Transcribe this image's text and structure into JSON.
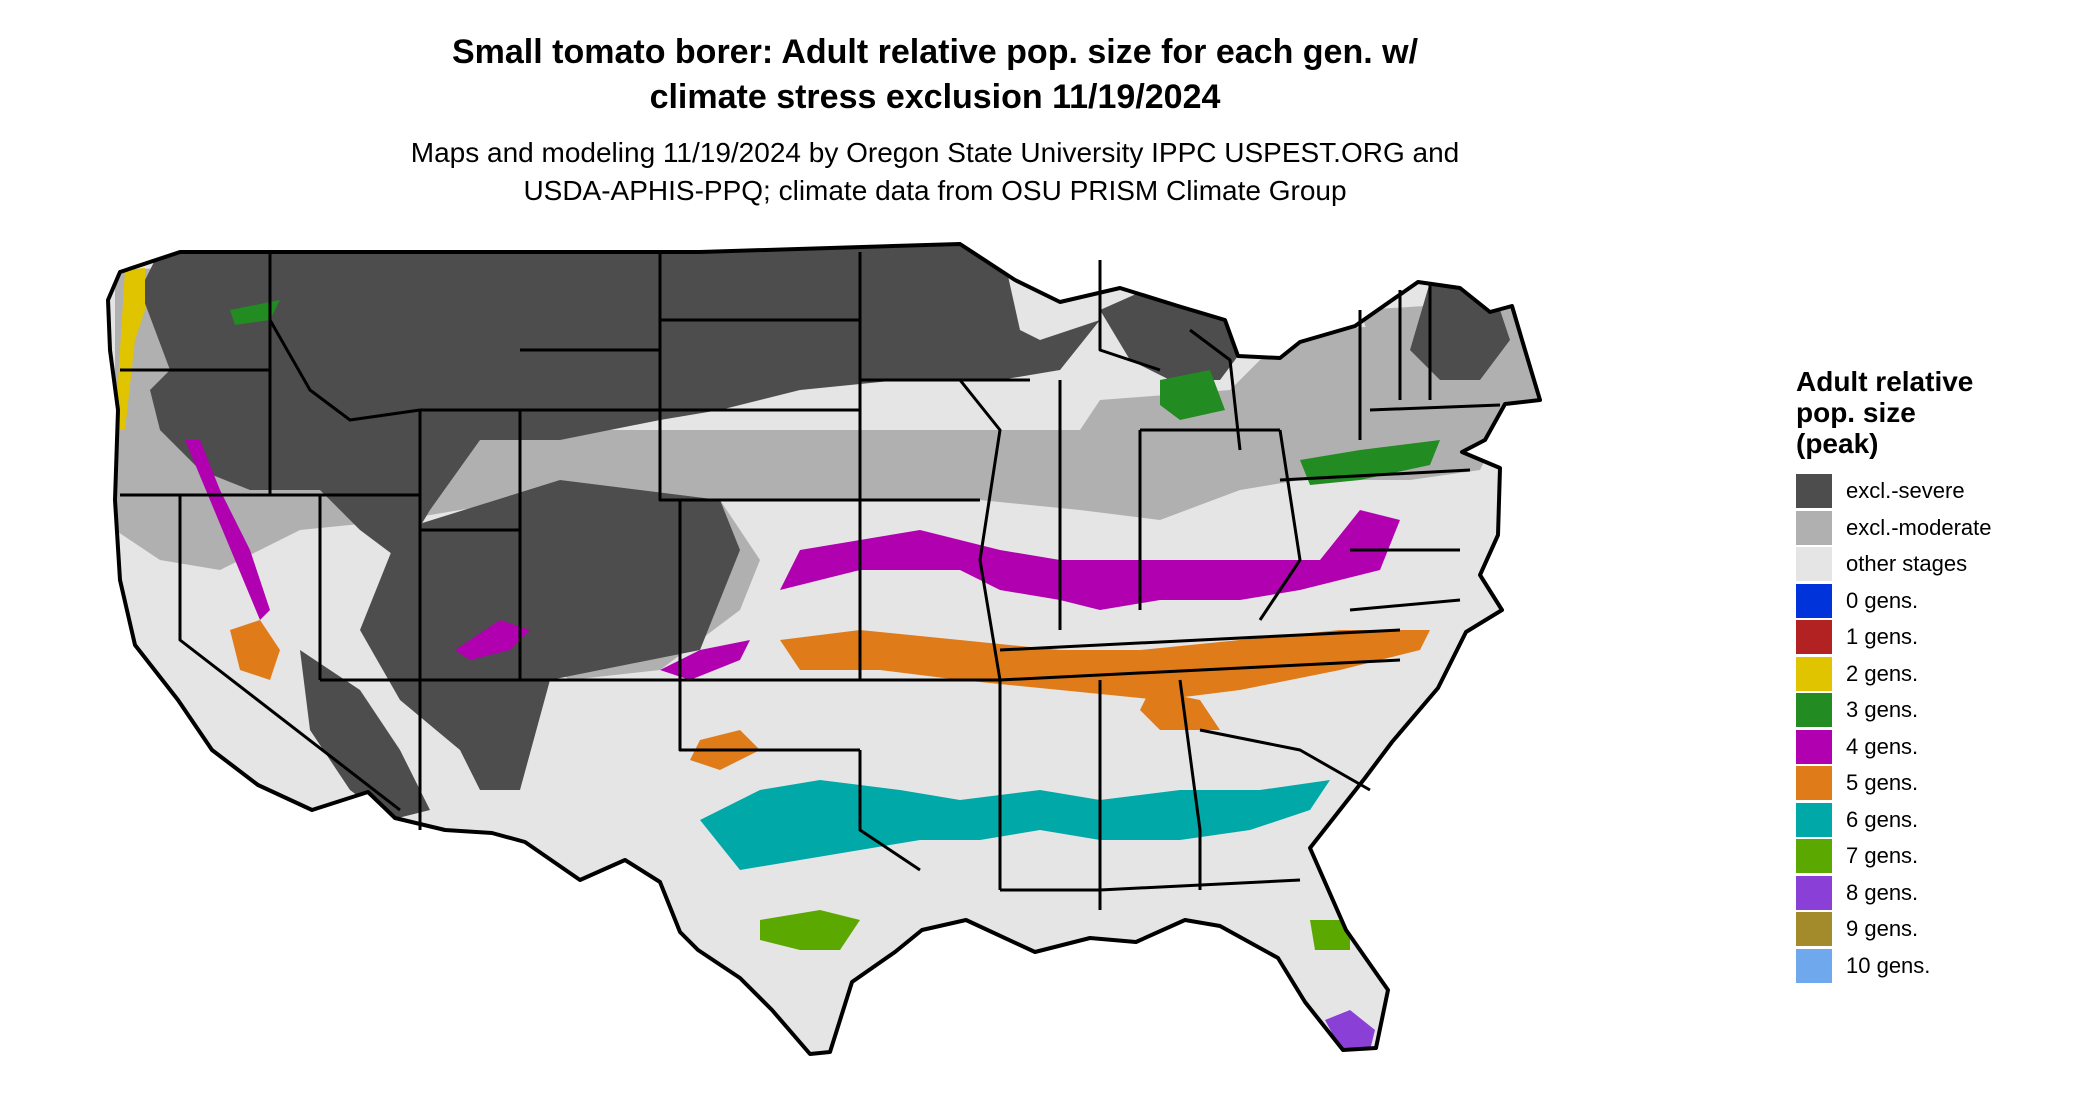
{
  "title": {
    "line1": "Small tomato borer: Adult relative pop. size for each gen. w/",
    "line2": "climate stress exclusion 11/19/2024"
  },
  "subtitle": {
    "line1": "Maps and modeling 11/19/2024 by Oregon State University IPPC USPEST.ORG and",
    "line2": "USDA-APHIS-PPQ; climate data from OSU PRISM Climate Group"
  },
  "legend": {
    "title_line1": "Adult relative",
    "title_line2": "pop. size",
    "title_line3": "(peak)",
    "items": [
      {
        "label": "excl.-severe",
        "color": "#4d4d4d"
      },
      {
        "label": "excl.-moderate",
        "color": "#b0b0b0"
      },
      {
        "label": "other stages",
        "color": "#e5e5e5"
      },
      {
        "label": "0 gens.",
        "color": "#0033d9"
      },
      {
        "label": "1 gens.",
        "color": "#b22222"
      },
      {
        "label": "2 gens.",
        "color": "#e0c400"
      },
      {
        "label": "3 gens.",
        "color": "#228b22"
      },
      {
        "label": "4 gens.",
        "color": "#b000b0"
      },
      {
        "label": "5 gens.",
        "color": "#e07b1a"
      },
      {
        "label": "6 gens.",
        "color": "#00a8a8"
      },
      {
        "label": "7 gens.",
        "color": "#5aa800"
      },
      {
        "label": "8 gens.",
        "color": "#8a3fd6"
      },
      {
        "label": "9 gens.",
        "color": "#a38a2a"
      },
      {
        "label": "10 gens.",
        "color": "#6fa8ec"
      }
    ]
  }
}
